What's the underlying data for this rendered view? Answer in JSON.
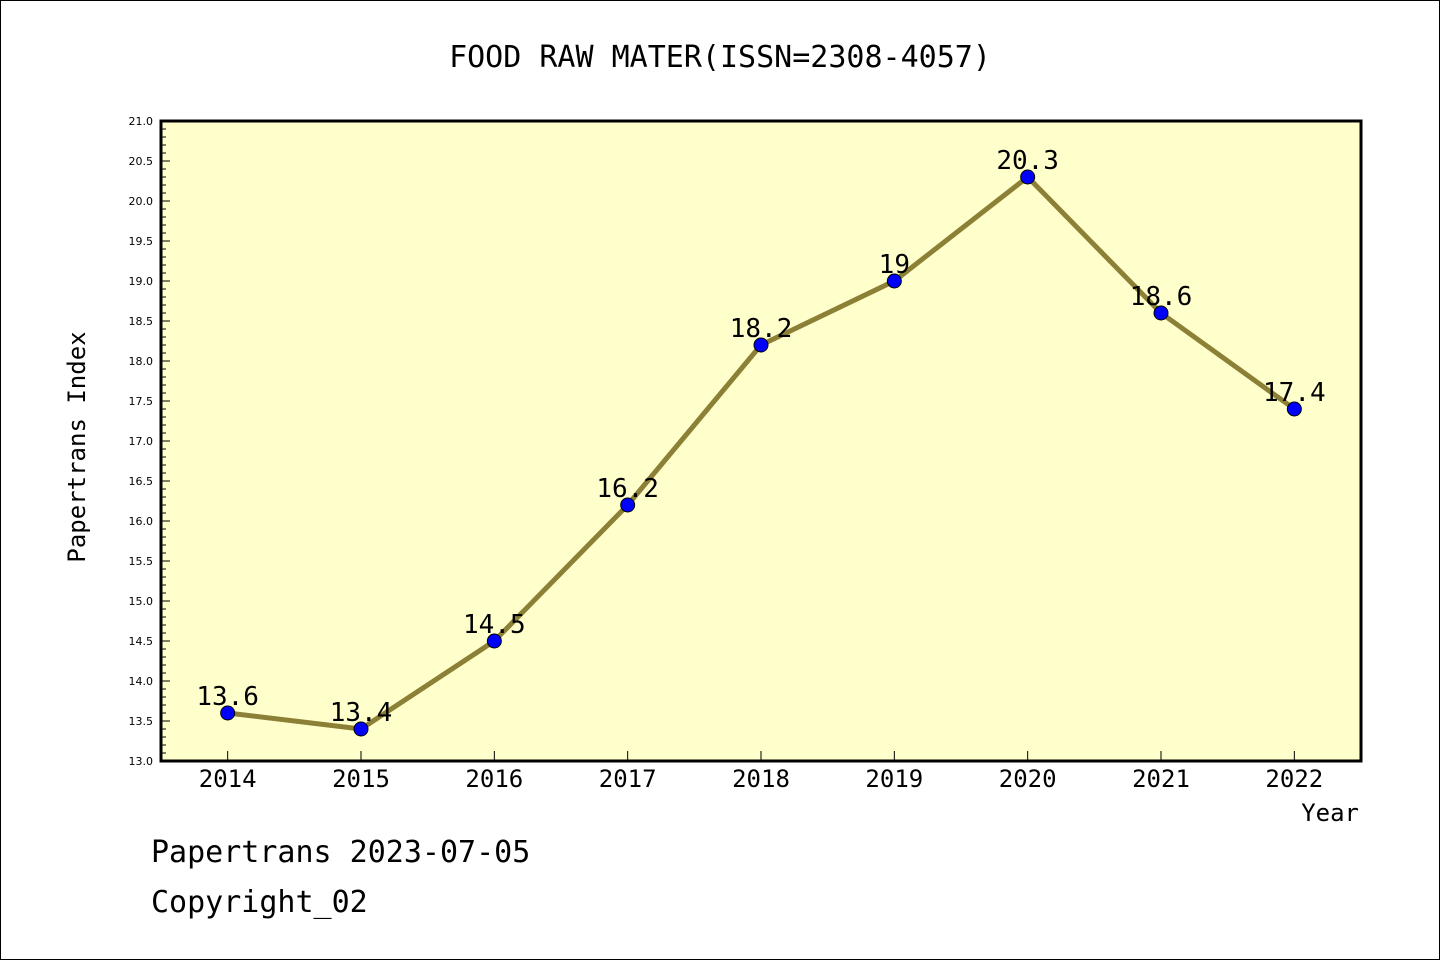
{
  "chart_data": {
    "type": "line",
    "title": "FOOD RAW MATER(ISSN=2308-4057)",
    "xlabel": "Year",
    "ylabel": "Papertrans Index",
    "categories": [
      "2014",
      "2015",
      "2016",
      "2017",
      "2018",
      "2019",
      "2020",
      "2021",
      "2022"
    ],
    "values": [
      13.6,
      13.4,
      14.5,
      16.2,
      18.2,
      19,
      20.3,
      18.6,
      17.4
    ],
    "data_labels": [
      "13.6",
      "13.4",
      "14.5",
      "16.2",
      "18.2",
      "19",
      "20.3",
      "18.6",
      "17.4"
    ],
    "ylim": [
      13.0,
      21.0
    ],
    "y_ticks": [
      "13.0",
      "13.5",
      "14.0",
      "14.5",
      "15.0",
      "15.5",
      "16.0",
      "16.5",
      "17.0",
      "17.5",
      "18.0",
      "18.5",
      "19.0",
      "19.5",
      "20.0",
      "20.5",
      "21.0"
    ],
    "grid": false,
    "legend": "none",
    "colors": {
      "plot_background": "#ffffcc",
      "line": "#8b8036",
      "marker": "#0000ff",
      "axis": "#000000"
    }
  },
  "footer": {
    "date_line": "Papertrans 2023-07-05",
    "copyright": "Copyright_02"
  }
}
